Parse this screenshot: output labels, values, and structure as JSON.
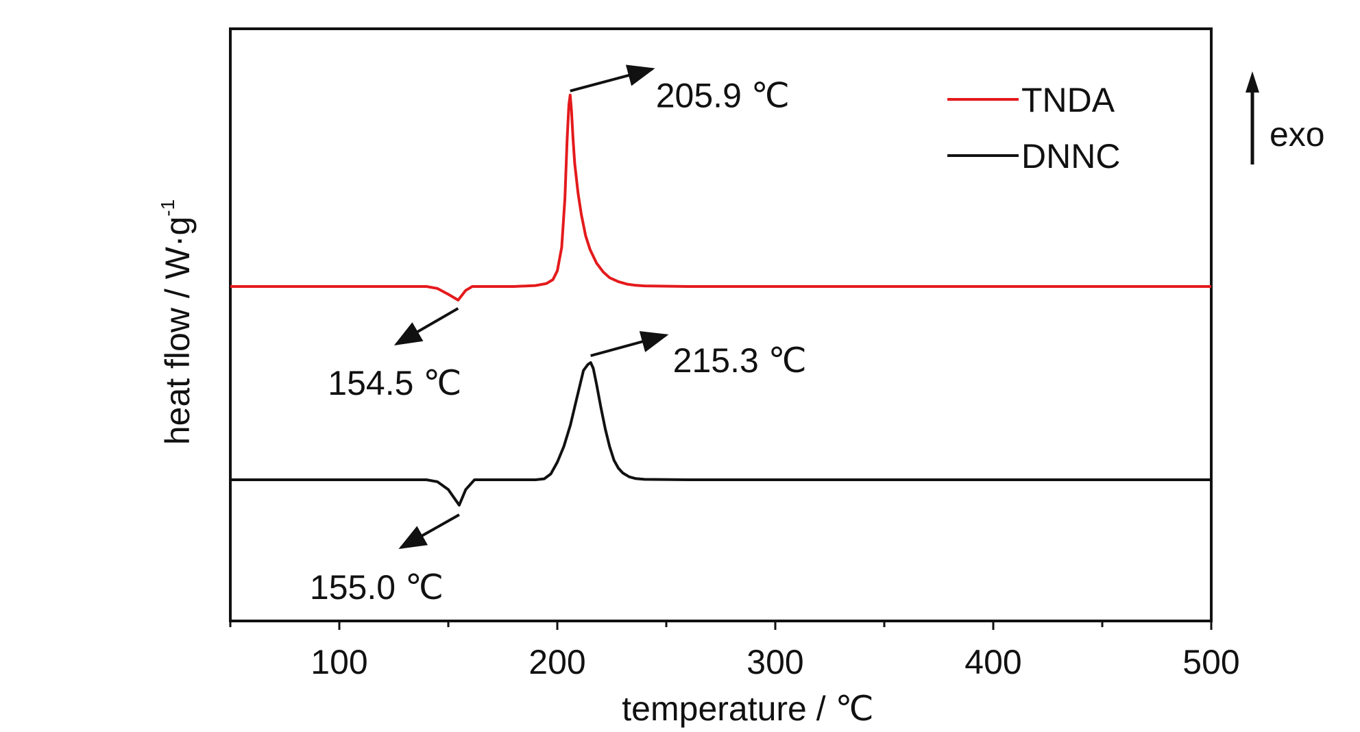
{
  "chart_data": {
    "type": "line",
    "title": "",
    "xlabel": "temperature / ℃",
    "ylabel_main": "heat flow / W·g",
    "ylabel_sup": "-1",
    "xlim": [
      50,
      500
    ],
    "xticks": [
      100,
      200,
      300,
      400,
      500
    ],
    "y_tick_labels": false,
    "grid": false,
    "legend": {
      "placement": "top-right",
      "entries": [
        "TNDA",
        "DNNC"
      ]
    },
    "exo_indicator": {
      "label": "exo",
      "direction": "up"
    },
    "series": [
      {
        "name": "TNDA",
        "color": "#e41a1c",
        "baseline": 0,
        "x": [
          50,
          100,
          140,
          145,
          150,
          154.5,
          158,
          161,
          170,
          180,
          190,
          195,
          198,
          200,
          202,
          203.5,
          204.5,
          205.3,
          205.9,
          206.5,
          207.2,
          208,
          209.5,
          211,
          213,
          215,
          218,
          221,
          224,
          228,
          232,
          236,
          240,
          260,
          300,
          350,
          400,
          450,
          500
        ],
        "y": [
          0,
          0,
          0,
          -0.1,
          -0.4,
          -0.7,
          -0.2,
          0,
          0,
          0,
          0.05,
          0.15,
          0.35,
          0.8,
          2.0,
          4.5,
          7.5,
          9.3,
          9.8,
          9.0,
          7.6,
          6.3,
          4.8,
          3.7,
          2.6,
          1.9,
          1.2,
          0.75,
          0.45,
          0.25,
          0.12,
          0.06,
          0.03,
          0,
          0,
          0,
          0,
          0,
          0
        ]
      },
      {
        "name": "DNNC",
        "color": "#111111",
        "baseline": -10,
        "x": [
          50,
          100,
          140,
          145,
          150,
          155.0,
          158,
          162,
          170,
          180,
          190,
          194,
          197,
          200,
          203,
          206,
          209,
          212,
          214,
          215.3,
          216.5,
          218,
          220,
          222,
          224,
          226,
          228,
          230,
          233,
          236,
          240,
          260,
          300,
          350,
          400,
          450,
          500
        ],
        "y": [
          0,
          0,
          0,
          -0.1,
          -0.5,
          -1.3,
          -0.5,
          0,
          0,
          0,
          0,
          0.05,
          0.3,
          0.9,
          1.7,
          2.8,
          4.2,
          5.6,
          5.9,
          6.0,
          5.7,
          4.9,
          3.7,
          2.6,
          1.7,
          1.0,
          0.6,
          0.35,
          0.15,
          0.06,
          0.02,
          0,
          0,
          0,
          0,
          0,
          0
        ]
      }
    ],
    "annotations": [
      {
        "label": "205.9 ℃",
        "series": "TNDA",
        "x": 205.9,
        "kind": "exothermic-peak"
      },
      {
        "label": "154.5 ℃",
        "series": "TNDA",
        "x": 154.5,
        "kind": "endothermic-peak"
      },
      {
        "label": "215.3 ℃",
        "series": "DNNC",
        "x": 215.3,
        "kind": "exothermic-peak"
      },
      {
        "label": "155.0 ℃",
        "series": "DNNC",
        "x": 155.0,
        "kind": "endothermic-peak"
      }
    ]
  }
}
